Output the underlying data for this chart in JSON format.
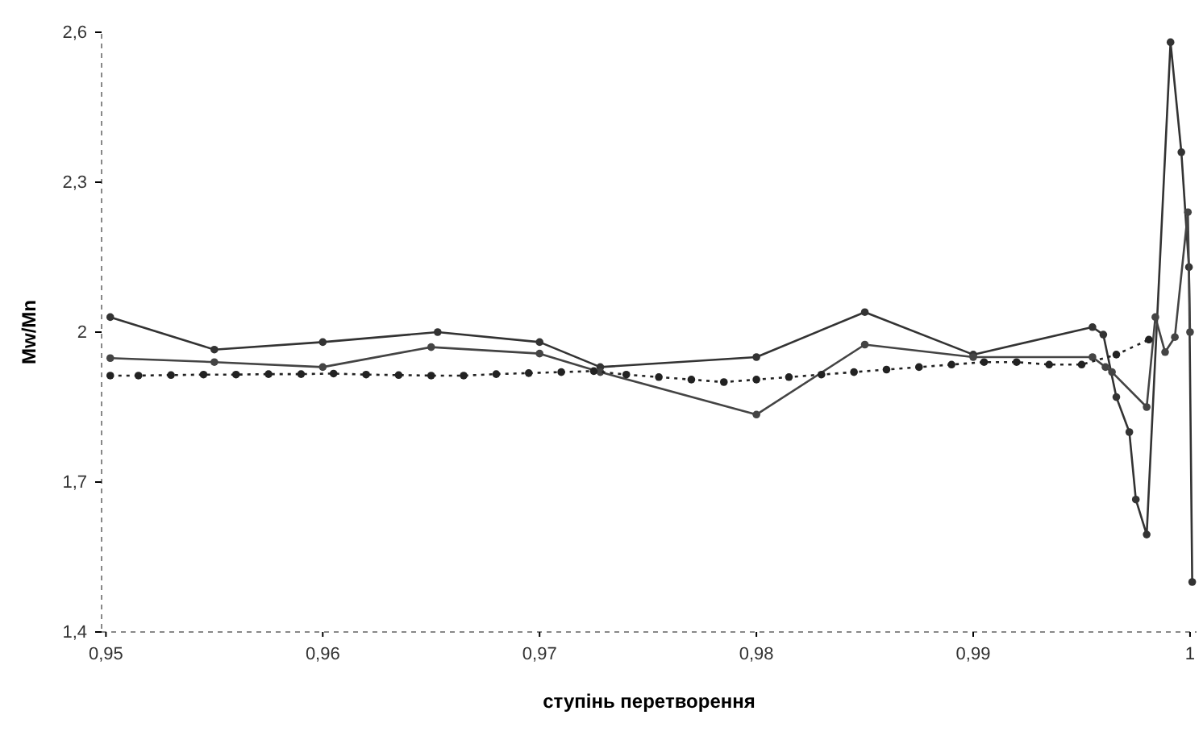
{
  "chart_data": {
    "type": "line",
    "xlabel": "ступінь перетворення",
    "ylabel": "Mw/Mn",
    "marker": "circle",
    "grid": false,
    "xlim": [
      0.9498,
      1.0003
    ],
    "ylim": [
      1.4,
      2.6
    ],
    "xticks": [
      {
        "value": 0.95,
        "label": "0,95"
      },
      {
        "value": 0.96,
        "label": "0,96"
      },
      {
        "value": 0.97,
        "label": "0,97"
      },
      {
        "value": 0.98,
        "label": "0,98"
      },
      {
        "value": 0.99,
        "label": "0,99"
      },
      {
        "value": 1,
        "label": "1"
      }
    ],
    "yticks": [
      {
        "value": 1.4,
        "label": "1,4"
      },
      {
        "value": 1.7,
        "label": "1,7"
      },
      {
        "value": 2,
        "label": "2"
      },
      {
        "value": 2.3,
        "label": "2,3"
      },
      {
        "value": 2.6,
        "label": "2,6"
      }
    ],
    "series": [
      {
        "color": "#333333",
        "line_style": "solid",
        "x": [
          0.9502,
          0.955,
          0.96,
          0.9653,
          0.97,
          0.9728,
          0.98,
          0.985,
          0.99,
          0.9955,
          0.996,
          0.9966,
          0.9972,
          0.9975,
          0.998,
          0.9991,
          0.9996,
          0.99995,
          1.0001
        ],
        "values": [
          2.03,
          1.965,
          1.98,
          2.0,
          1.98,
          1.93,
          1.95,
          2.04,
          1.955,
          2.01,
          1.995,
          1.87,
          1.8,
          1.665,
          1.595,
          2.58,
          2.36,
          2.13,
          1.5
        ]
      },
      {
        "color": "#444444",
        "line_style": "solid",
        "x": [
          0.9502,
          0.955,
          0.96,
          0.965,
          0.97,
          0.9728,
          0.98,
          0.985,
          0.99,
          0.9955,
          0.9961,
          0.9964,
          0.998,
          0.9984,
          0.99885,
          0.9993,
          0.9999,
          1.0
        ],
        "values": [
          1.948,
          1.94,
          1.93,
          1.97,
          1.957,
          1.92,
          1.835,
          1.975,
          1.95,
          1.95,
          1.93,
          1.92,
          1.85,
          2.03,
          1.96,
          1.99,
          2.24,
          2.0
        ]
      },
      {
        "color": "#222222",
        "line_style": "dotted",
        "x": [
          0.9502,
          0.9515,
          0.953,
          0.9545,
          0.956,
          0.9575,
          0.959,
          0.9605,
          0.962,
          0.9635,
          0.965,
          0.9665,
          0.968,
          0.9695,
          0.971,
          0.9725,
          0.974,
          0.9755,
          0.977,
          0.9785,
          0.98,
          0.9815,
          0.983,
          0.9845,
          0.986,
          0.9875,
          0.989,
          0.9905,
          0.992,
          0.9935,
          0.995,
          0.9966,
          0.9981
        ],
        "values": [
          1.913,
          1.913,
          1.914,
          1.915,
          1.915,
          1.916,
          1.916,
          1.917,
          1.915,
          1.914,
          1.913,
          1.913,
          1.916,
          1.918,
          1.92,
          1.922,
          1.915,
          1.91,
          1.905,
          1.9,
          1.905,
          1.91,
          1.915,
          1.92,
          1.925,
          1.93,
          1.935,
          1.94,
          1.94,
          1.935,
          1.935,
          1.955,
          1.985
        ]
      }
    ]
  }
}
